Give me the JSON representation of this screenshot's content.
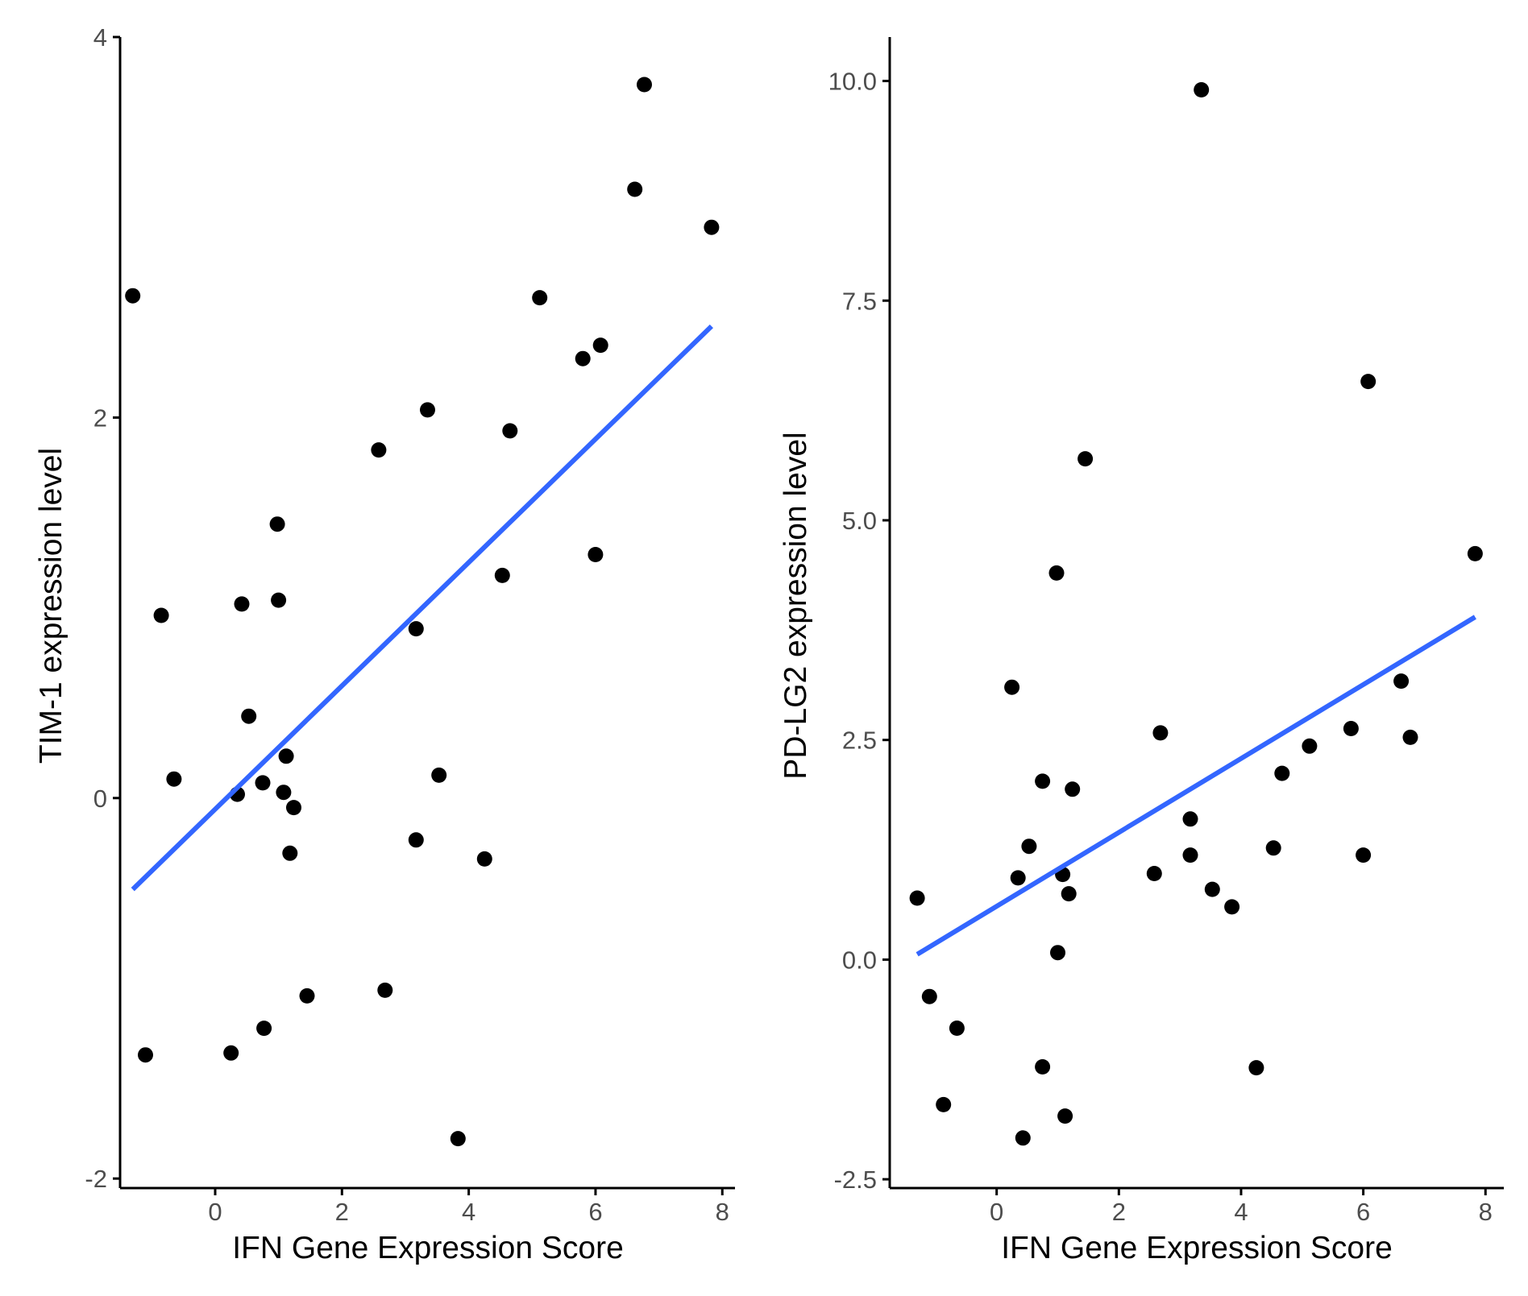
{
  "colors": {
    "point": "#000000",
    "fit_line": "#3366ff",
    "axis": "#000000",
    "tick_label": "#4d4d4d"
  },
  "chart_data": [
    {
      "type": "scatter",
      "xlabel": "IFN Gene Expression Score",
      "ylabel": "TIM-1 expression level",
      "xlim": [
        -1.5,
        8.2
      ],
      "ylim": [
        -2.05,
        4.0
      ],
      "xticks": [
        0,
        2,
        4,
        6,
        8
      ],
      "xtick_labels": [
        "0",
        "2",
        "4",
        "6",
        "8"
      ],
      "yticks": [
        -2,
        0,
        2,
        4
      ],
      "ytick_labels": [
        "-2",
        "0",
        "2",
        "4"
      ],
      "grid": false,
      "points": [
        {
          "x": -1.3,
          "y": 2.64
        },
        {
          "x": -1.1,
          "y": -1.35
        },
        {
          "x": -0.85,
          "y": 0.96
        },
        {
          "x": -0.65,
          "y": 0.1
        },
        {
          "x": 0.25,
          "y": -1.34
        },
        {
          "x": 0.35,
          "y": 0.02
        },
        {
          "x": 0.42,
          "y": 1.02
        },
        {
          "x": 0.53,
          "y": 0.43
        },
        {
          "x": 0.75,
          "y": 0.08
        },
        {
          "x": 0.77,
          "y": -1.21
        },
        {
          "x": 0.98,
          "y": 1.44
        },
        {
          "x": 1.0,
          "y": 1.04
        },
        {
          "x": 1.08,
          "y": 0.03
        },
        {
          "x": 1.12,
          "y": 0.22
        },
        {
          "x": 1.18,
          "y": -0.29
        },
        {
          "x": 1.24,
          "y": -0.05
        },
        {
          "x": 1.45,
          "y": -1.04
        },
        {
          "x": 2.58,
          "y": 1.83
        },
        {
          "x": 2.68,
          "y": -1.01
        },
        {
          "x": 3.17,
          "y": 0.89
        },
        {
          "x": 3.17,
          "y": -0.22
        },
        {
          "x": 3.35,
          "y": 2.04
        },
        {
          "x": 3.53,
          "y": 0.12
        },
        {
          "x": 3.83,
          "y": -1.79
        },
        {
          "x": 4.25,
          "y": -0.32
        },
        {
          "x": 4.53,
          "y": 1.17
        },
        {
          "x": 4.65,
          "y": 1.93
        },
        {
          "x": 5.12,
          "y": 2.63
        },
        {
          "x": 5.8,
          "y": 2.31
        },
        {
          "x": 6.0,
          "y": 1.28
        },
        {
          "x": 6.08,
          "y": 2.38
        },
        {
          "x": 6.62,
          "y": 3.2
        },
        {
          "x": 6.77,
          "y": 3.75
        },
        {
          "x": 7.83,
          "y": 3.0
        }
      ],
      "fit": {
        "x": [
          -1.3,
          7.83
        ],
        "y": [
          -0.48,
          2.48
        ]
      }
    },
    {
      "type": "scatter",
      "xlabel": "IFN Gene Expression Score",
      "ylabel": "PD-LG2 expression level",
      "xlim": [
        -1.75,
        8.3
      ],
      "ylim": [
        -2.6,
        10.5
      ],
      "xticks": [
        0,
        2,
        4,
        6,
        8
      ],
      "xtick_labels": [
        "0",
        "2",
        "4",
        "6",
        "8"
      ],
      "yticks": [
        -2.5,
        0.0,
        2.5,
        5.0,
        7.5,
        10.0
      ],
      "ytick_labels": [
        "-2.5",
        "0.0",
        "2.5",
        "5.0",
        "7.5",
        "10.0"
      ],
      "grid": false,
      "points": [
        {
          "x": -1.3,
          "y": 0.7
        },
        {
          "x": -1.1,
          "y": -0.42
        },
        {
          "x": -0.87,
          "y": -1.65
        },
        {
          "x": -0.65,
          "y": -0.78
        },
        {
          "x": 0.25,
          "y": 3.1
        },
        {
          "x": 0.35,
          "y": 0.93
        },
        {
          "x": 0.43,
          "y": -2.03
        },
        {
          "x": 0.53,
          "y": 1.29
        },
        {
          "x": 0.75,
          "y": 2.03
        },
        {
          "x": 0.75,
          "y": -1.22
        },
        {
          "x": 0.98,
          "y": 4.4
        },
        {
          "x": 1.0,
          "y": 0.08
        },
        {
          "x": 1.08,
          "y": 0.97
        },
        {
          "x": 1.12,
          "y": -1.78
        },
        {
          "x": 1.18,
          "y": 0.75
        },
        {
          "x": 1.24,
          "y": 1.94
        },
        {
          "x": 1.45,
          "y": 5.7
        },
        {
          "x": 2.58,
          "y": 0.98
        },
        {
          "x": 2.68,
          "y": 2.58
        },
        {
          "x": 3.17,
          "y": 1.6
        },
        {
          "x": 3.17,
          "y": 1.19
        },
        {
          "x": 3.35,
          "y": 9.9
        },
        {
          "x": 3.53,
          "y": 0.8
        },
        {
          "x": 3.85,
          "y": 0.6
        },
        {
          "x": 4.25,
          "y": -1.23
        },
        {
          "x": 4.53,
          "y": 1.27
        },
        {
          "x": 4.67,
          "y": 2.12
        },
        {
          "x": 5.12,
          "y": 2.43
        },
        {
          "x": 5.8,
          "y": 2.63
        },
        {
          "x": 6.0,
          "y": 1.19
        },
        {
          "x": 6.08,
          "y": 6.58
        },
        {
          "x": 6.62,
          "y": 3.17
        },
        {
          "x": 6.77,
          "y": 2.53
        },
        {
          "x": 7.83,
          "y": 4.62
        }
      ],
      "fit": {
        "x": [
          -1.3,
          7.83
        ],
        "y": [
          0.06,
          3.9
        ]
      }
    }
  ]
}
